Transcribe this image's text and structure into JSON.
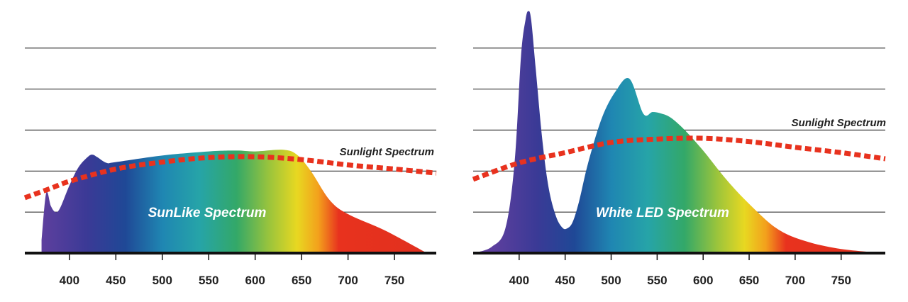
{
  "colors": {
    "gridline": "#333333",
    "axis": "#111111",
    "sunlight_curve": "#e8321e",
    "spectrum_gradient": [
      {
        "nm": 370,
        "color": "#5e3f9e"
      },
      {
        "nm": 420,
        "color": "#3a3a96"
      },
      {
        "nm": 460,
        "color": "#1f4896"
      },
      {
        "nm": 500,
        "color": "#1f86b2"
      },
      {
        "nm": 540,
        "color": "#26a4a8"
      },
      {
        "nm": 580,
        "color": "#33a868"
      },
      {
        "nm": 615,
        "color": "#9ac43c"
      },
      {
        "nm": 645,
        "color": "#e8d821"
      },
      {
        "nm": 668,
        "color": "#f3a11c"
      },
      {
        "nm": 690,
        "color": "#e8321e"
      },
      {
        "nm": 800,
        "color": "#e0301f"
      }
    ]
  },
  "chart_data": [
    {
      "type": "area",
      "title": "",
      "xlabel": "",
      "ylabel": "",
      "x_ticks": [
        400,
        450,
        500,
        550,
        600,
        650,
        700,
        750
      ],
      "xlim": [
        352,
        795
      ],
      "ylim": [
        0,
        6
      ],
      "y_gridlines": [
        1,
        2,
        3,
        4,
        5
      ],
      "grid": true,
      "series": [
        {
          "name": "SunLike Spectrum",
          "label": "SunLike Spectrum",
          "kind": "filled-spectrum",
          "x": [
            370,
            375,
            380,
            385,
            390,
            400,
            410,
            420,
            425,
            430,
            440,
            450,
            500,
            550,
            580,
            600,
            630,
            645,
            660,
            680,
            700,
            740,
            785
          ],
          "y": [
            0.3,
            1.47,
            1.15,
            1.0,
            1.1,
            1.65,
            2.1,
            2.35,
            2.4,
            2.34,
            2.2,
            2.22,
            2.38,
            2.48,
            2.5,
            2.48,
            2.52,
            2.4,
            2.0,
            1.3,
            0.95,
            0.55,
            0.0
          ]
        },
        {
          "name": "Sunlight Spectrum",
          "label": "Sunlight Spectrum",
          "kind": "dashed-line",
          "x": [
            352,
            380,
            400,
            450,
            500,
            550,
            600,
            650,
            700,
            750,
            795
          ],
          "y": [
            1.35,
            1.58,
            1.75,
            2.05,
            2.22,
            2.33,
            2.35,
            2.28,
            2.15,
            2.05,
            1.95
          ]
        }
      ]
    },
    {
      "type": "area",
      "title": "",
      "xlabel": "",
      "ylabel": "",
      "x_ticks": [
        400,
        450,
        500,
        550,
        600,
        650,
        700,
        750
      ],
      "xlim": [
        350,
        798
      ],
      "ylim": [
        0,
        6
      ],
      "y_gridlines": [
        1,
        2,
        3,
        4,
        5
      ],
      "grid": true,
      "series": [
        {
          "name": "White LED Spectrum",
          "label": "White LED Spectrum",
          "kind": "filled-spectrum",
          "x": [
            350,
            370,
            385,
            395,
            402,
            407,
            410,
            413,
            418,
            425,
            432,
            440,
            447,
            452,
            458,
            465,
            475,
            490,
            505,
            520,
            535,
            545,
            555,
            565,
            580,
            600,
            625,
            650,
            680,
            710,
            750,
            798
          ],
          "y": [
            0.0,
            0.15,
            0.6,
            2.2,
            4.8,
            5.7,
            5.9,
            5.7,
            4.5,
            2.8,
            1.6,
            0.9,
            0.62,
            0.6,
            0.75,
            1.25,
            2.2,
            3.3,
            3.95,
            4.25,
            3.4,
            3.44,
            3.4,
            3.3,
            3.0,
            2.5,
            1.8,
            1.2,
            0.6,
            0.3,
            0.1,
            0.0
          ]
        },
        {
          "name": "Sunlight Spectrum",
          "label": "Sunlight Spectrum",
          "kind": "dashed-line",
          "x": [
            350,
            400,
            450,
            500,
            550,
            600,
            650,
            700,
            750,
            798
          ],
          "y": [
            1.8,
            2.2,
            2.45,
            2.7,
            2.78,
            2.8,
            2.72,
            2.58,
            2.45,
            2.3
          ]
        }
      ]
    }
  ]
}
